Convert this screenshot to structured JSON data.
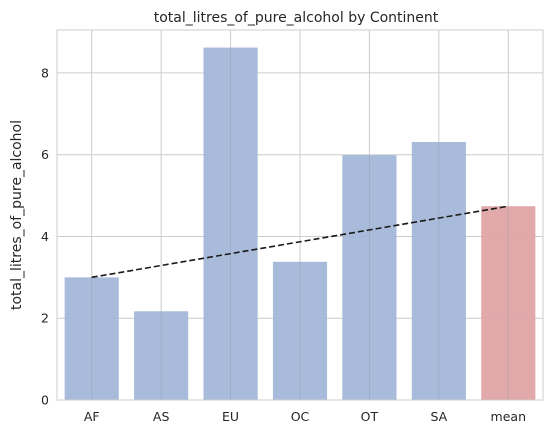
{
  "chart_data": {
    "type": "bar",
    "title": "total_litres_of_pure_alcohol by Continent",
    "xlabel": "",
    "ylabel": "total_litres_of_pure_alcohol",
    "categories": [
      "AF",
      "AS",
      "EU",
      "OC",
      "OT",
      "SA",
      "mean"
    ],
    "values": [
      3.0,
      2.17,
      8.62,
      3.38,
      5.99,
      6.31,
      4.74
    ],
    "ylim": [
      0,
      9.05
    ],
    "yticks": [
      0,
      2,
      4,
      6,
      8
    ],
    "grid": true,
    "bar_colors": [
      "#a3b7d8",
      "#a3b7d8",
      "#a3b7d8",
      "#a3b7d8",
      "#a3b7d8",
      "#a3b7d8",
      "#dfa4a5"
    ],
    "mean_line": {
      "from_category": "AF",
      "to_category": "mean",
      "from_value": 3.0,
      "to_value": 4.74,
      "style": "dashed",
      "color": "#1a1a1a"
    },
    "colors": {
      "grid": "#cccccc",
      "axes_edge": "#cccccc",
      "text": "#262626"
    }
  }
}
